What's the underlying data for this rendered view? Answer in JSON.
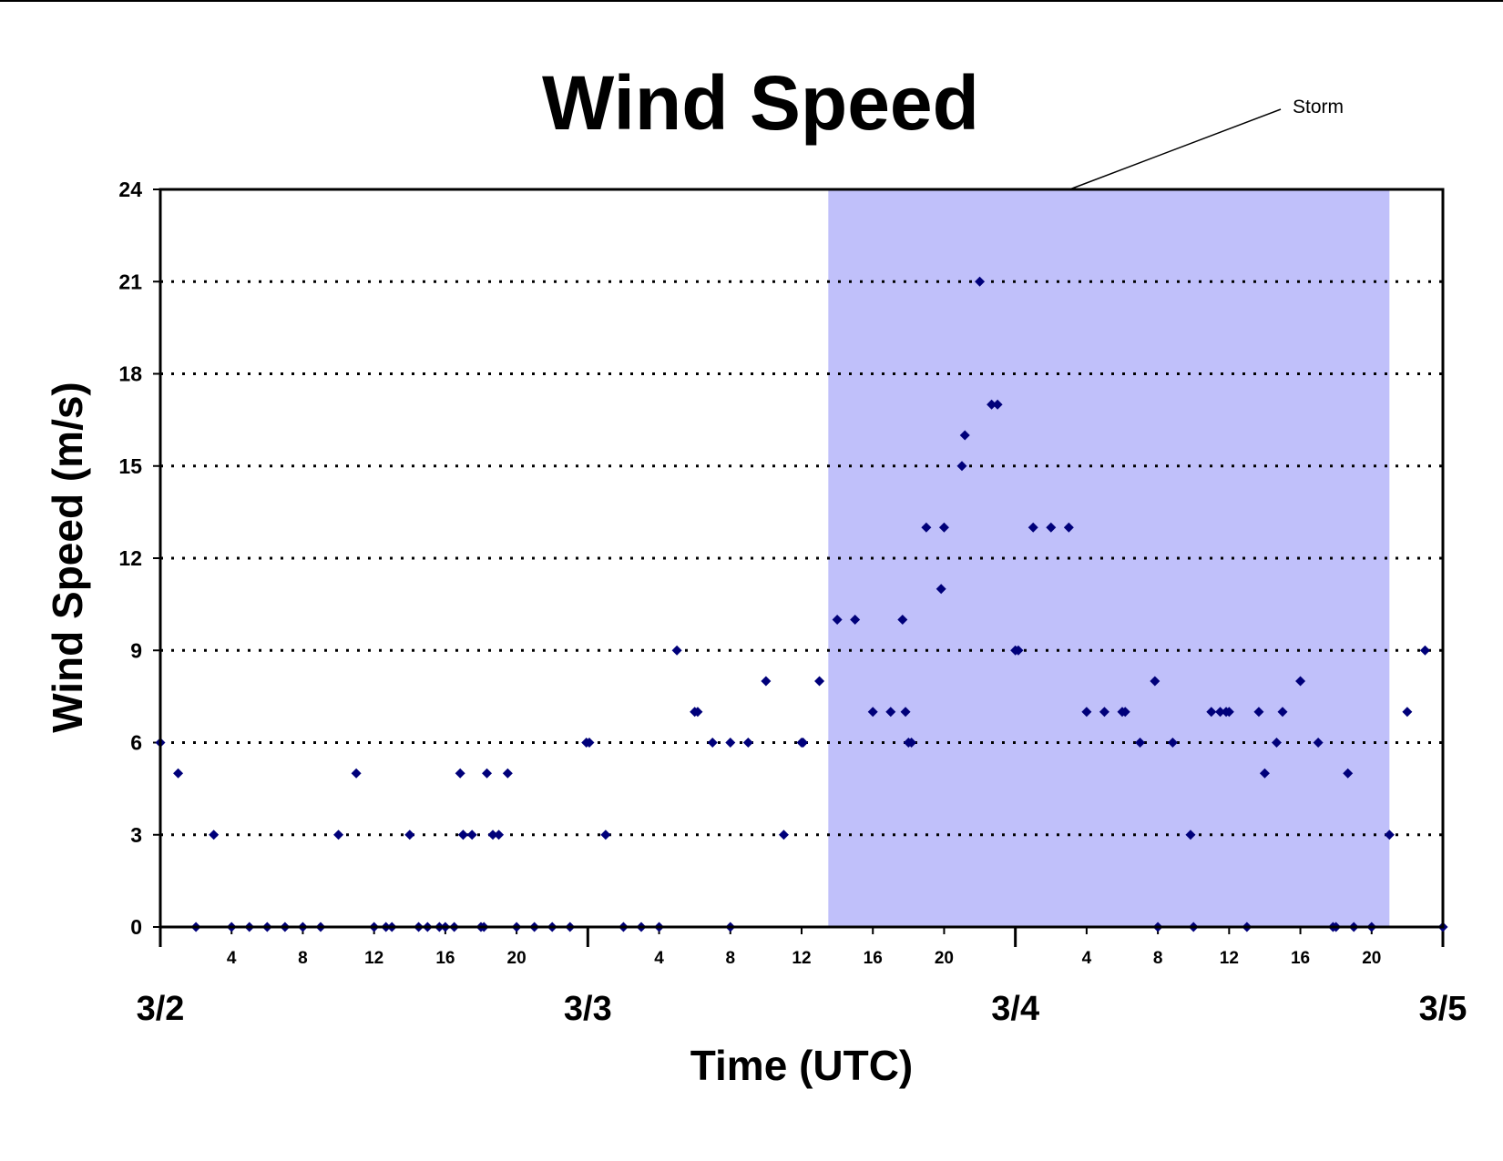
{
  "chart_data": {
    "type": "scatter",
    "title": "Wind Speed",
    "xlabel": "Time (UTC)",
    "ylabel": "Wind Speed (m/s)",
    "xlim": [
      "3/2 00:00",
      "3/5 00:00"
    ],
    "ylim": [
      0,
      24
    ],
    "yticks": [
      0,
      3,
      6,
      9,
      12,
      15,
      18,
      21,
      24
    ],
    "hour_tick_labels": [
      "4",
      "8",
      "12",
      "16",
      "20"
    ],
    "date_labels": [
      "3/2",
      "3/3",
      "3/4",
      "3/5"
    ],
    "grid": "horizontal dotted",
    "marker_color": "#00007a",
    "shaded_region": {
      "label": "Storm",
      "start": "3/3 13:30",
      "end": "3/4 21:00",
      "color": "#c0c0fa"
    },
    "points": [
      {
        "x": "3/2 00:00",
        "y": 6
      },
      {
        "x": "3/2 01:00",
        "y": 5
      },
      {
        "x": "3/2 02:00",
        "y": 0
      },
      {
        "x": "3/2 03:00",
        "y": 3
      },
      {
        "x": "3/2 04:00",
        "y": 0
      },
      {
        "x": "3/2 05:00",
        "y": 0
      },
      {
        "x": "3/2 06:00",
        "y": 0
      },
      {
        "x": "3/2 07:00",
        "y": 0
      },
      {
        "x": "3/2 08:00",
        "y": 0
      },
      {
        "x": "3/2 09:00",
        "y": 0
      },
      {
        "x": "3/2 10:00",
        "y": 3
      },
      {
        "x": "3/2 11:00",
        "y": 5
      },
      {
        "x": "3/2 12:00",
        "y": 0
      },
      {
        "x": "3/2 12:40",
        "y": 0
      },
      {
        "x": "3/2 13:00",
        "y": 0
      },
      {
        "x": "3/2 14:00",
        "y": 3
      },
      {
        "x": "3/2 14:30",
        "y": 0
      },
      {
        "x": "3/2 15:00",
        "y": 0
      },
      {
        "x": "3/2 15:40",
        "y": 0
      },
      {
        "x": "3/2 16:00",
        "y": 0
      },
      {
        "x": "3/2 16:30",
        "y": 0
      },
      {
        "x": "3/2 16:50",
        "y": 5
      },
      {
        "x": "3/2 17:00",
        "y": 3
      },
      {
        "x": "3/2 17:00",
        "y": 3
      },
      {
        "x": "3/2 17:30",
        "y": 3
      },
      {
        "x": "3/2 18:00",
        "y": 0
      },
      {
        "x": "3/2 18:10",
        "y": 0
      },
      {
        "x": "3/2 18:20",
        "y": 5
      },
      {
        "x": "3/2 18:40",
        "y": 3
      },
      {
        "x": "3/2 19:00",
        "y": 3
      },
      {
        "x": "3/2 19:30",
        "y": 5
      },
      {
        "x": "3/2 20:00",
        "y": 0
      },
      {
        "x": "3/2 21:00",
        "y": 0
      },
      {
        "x": "3/2 22:00",
        "y": 0
      },
      {
        "x": "3/2 23:00",
        "y": 0
      },
      {
        "x": "3/2 23:55",
        "y": 6
      },
      {
        "x": "3/3 00:05",
        "y": 6
      },
      {
        "x": "3/3 01:00",
        "y": 3
      },
      {
        "x": "3/3 02:00",
        "y": 0
      },
      {
        "x": "3/3 03:00",
        "y": 0
      },
      {
        "x": "3/3 04:00",
        "y": 0
      },
      {
        "x": "3/3 05:00",
        "y": 9
      },
      {
        "x": "3/3 06:00",
        "y": 7
      },
      {
        "x": "3/3 06:10",
        "y": 7
      },
      {
        "x": "3/3 07:00",
        "y": 6
      },
      {
        "x": "3/3 08:00",
        "y": 6
      },
      {
        "x": "3/3 08:00",
        "y": 0
      },
      {
        "x": "3/3 09:00",
        "y": 6
      },
      {
        "x": "3/3 10:00",
        "y": 8
      },
      {
        "x": "3/3 11:00",
        "y": 3
      },
      {
        "x": "3/3 12:00",
        "y": 6
      },
      {
        "x": "3/3 12:05",
        "y": 6
      },
      {
        "x": "3/3 13:00",
        "y": 8
      },
      {
        "x": "3/3 14:00",
        "y": 10
      },
      {
        "x": "3/3 15:00",
        "y": 10
      },
      {
        "x": "3/3 16:00",
        "y": 7
      },
      {
        "x": "3/3 17:00",
        "y": 7
      },
      {
        "x": "3/3 17:40",
        "y": 10
      },
      {
        "x": "3/3 17:50",
        "y": 7
      },
      {
        "x": "3/3 18:00",
        "y": 6
      },
      {
        "x": "3/3 18:10",
        "y": 6
      },
      {
        "x": "3/3 19:00",
        "y": 13
      },
      {
        "x": "3/3 19:50",
        "y": 11
      },
      {
        "x": "3/3 20:00",
        "y": 13
      },
      {
        "x": "3/3 21:00",
        "y": 15
      },
      {
        "x": "3/3 21:10",
        "y": 16
      },
      {
        "x": "3/3 22:00",
        "y": 21
      },
      {
        "x": "3/3 22:40",
        "y": 17
      },
      {
        "x": "3/3 23:00",
        "y": 17
      },
      {
        "x": "3/4 00:00",
        "y": 9
      },
      {
        "x": "3/4 00:10",
        "y": 9
      },
      {
        "x": "3/4 01:00",
        "y": 13
      },
      {
        "x": "3/4 02:00",
        "y": 13
      },
      {
        "x": "3/4 03:00",
        "y": 13
      },
      {
        "x": "3/4 04:00",
        "y": 7
      },
      {
        "x": "3/4 05:00",
        "y": 7
      },
      {
        "x": "3/4 06:00",
        "y": 7
      },
      {
        "x": "3/4 06:10",
        "y": 7
      },
      {
        "x": "3/4 07:00",
        "y": 6
      },
      {
        "x": "3/4 07:50",
        "y": 8
      },
      {
        "x": "3/4 08:00",
        "y": 0
      },
      {
        "x": "3/4 08:50",
        "y": 6
      },
      {
        "x": "3/4 09:50",
        "y": 3
      },
      {
        "x": "3/4 10:00",
        "y": 0
      },
      {
        "x": "3/4 11:00",
        "y": 7
      },
      {
        "x": "3/4 11:30",
        "y": 7
      },
      {
        "x": "3/4 11:50",
        "y": 7
      },
      {
        "x": "3/4 12:00",
        "y": 7
      },
      {
        "x": "3/4 13:00",
        "y": 0
      },
      {
        "x": "3/4 13:40",
        "y": 7
      },
      {
        "x": "3/4 14:00",
        "y": 5
      },
      {
        "x": "3/4 14:40",
        "y": 6
      },
      {
        "x": "3/4 15:00",
        "y": 7
      },
      {
        "x": "3/4 16:00",
        "y": 8
      },
      {
        "x": "3/4 17:00",
        "y": 6
      },
      {
        "x": "3/4 17:50",
        "y": 0
      },
      {
        "x": "3/4 18:00",
        "y": 0
      },
      {
        "x": "3/4 18:40",
        "y": 5
      },
      {
        "x": "3/4 19:00",
        "y": 0
      },
      {
        "x": "3/4 20:00",
        "y": 0
      },
      {
        "x": "3/4 21:00",
        "y": 3
      },
      {
        "x": "3/4 22:00",
        "y": 7
      },
      {
        "x": "3/4 23:00",
        "y": 9
      },
      {
        "x": "3/5 00:00",
        "y": 0
      }
    ]
  }
}
